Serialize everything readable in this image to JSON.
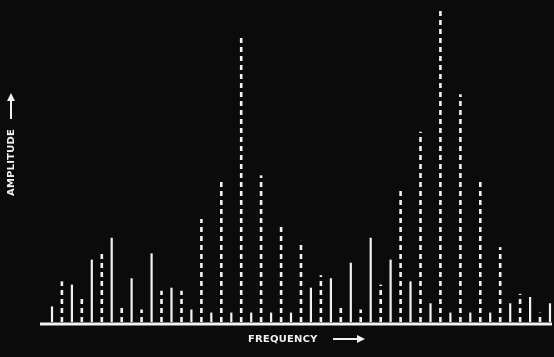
{
  "chart_data": {
    "type": "bar",
    "xlabel": "FREQUENCY",
    "ylabel": "AMPLITUDE",
    "xlim": [
      0,
      51
    ],
    "ylim": [
      0,
      100
    ],
    "grid": false,
    "legend": "none",
    "axis_color": "#f2f2f2",
    "solid_color": "#f2f2f2",
    "dashed_color": "#f2f2f2",
    "series": [
      {
        "style": "solid",
        "x": [
          1,
          3,
          5,
          7,
          9,
          11,
          13,
          15,
          17,
          19,
          21,
          23,
          25,
          27,
          29,
          31,
          33,
          35,
          37,
          39,
          41,
          43,
          45,
          47,
          49,
          51
        ],
        "values": [
          5,
          12,
          20,
          27,
          14,
          22,
          11,
          4,
          3,
          3,
          3,
          3,
          3,
          11,
          14,
          19,
          27,
          20,
          13,
          6,
          3,
          3,
          3,
          6,
          8,
          6
        ]
      },
      {
        "style": "dashed",
        "x": [
          2,
          4,
          6,
          8,
          10,
          12,
          14,
          16,
          18,
          20,
          22,
          24,
          26,
          28,
          30,
          32,
          34,
          36,
          38,
          40,
          42,
          44,
          46,
          48,
          50
        ],
        "values": [
          13,
          8,
          22,
          5,
          4,
          10,
          10,
          33,
          46,
          92,
          47,
          31,
          26,
          15,
          5,
          4,
          12,
          42,
          61,
          100,
          73,
          46,
          24,
          9,
          3
        ]
      }
    ]
  }
}
